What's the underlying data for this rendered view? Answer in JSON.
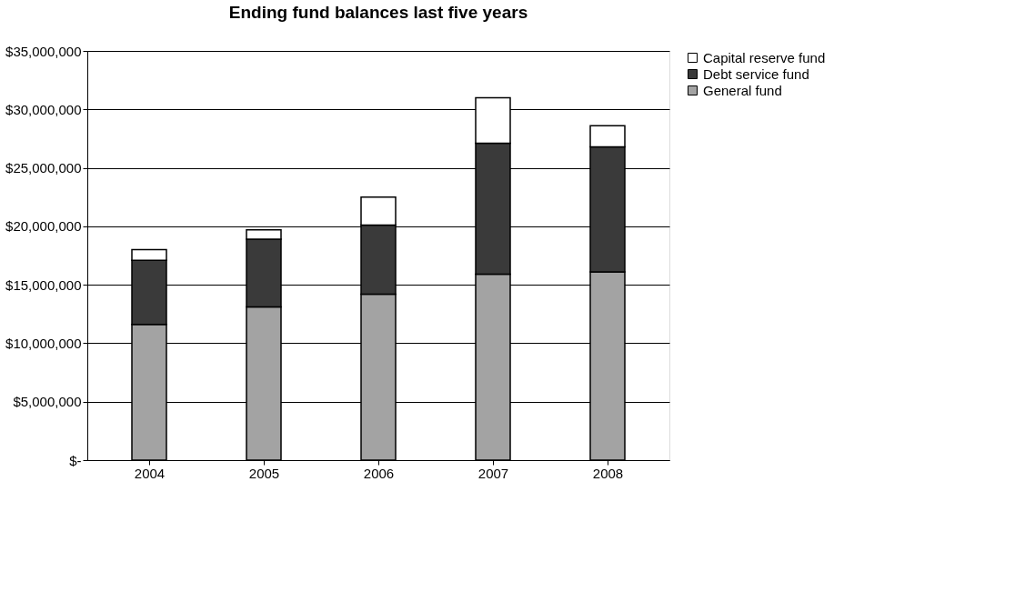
{
  "chart_data": {
    "type": "bar",
    "title": "Ending fund balances last five years",
    "categories": [
      "2004",
      "2005",
      "2006",
      "2007",
      "2008"
    ],
    "stacked": true,
    "series": [
      {
        "name": "General fund",
        "color": "#a3a3a3",
        "values": [
          11600000,
          13100000,
          14200000,
          15900000,
          16100000
        ]
      },
      {
        "name": "Debt service fund",
        "color": "#3a3a3a",
        "values": [
          5500000,
          5800000,
          5900000,
          11200000,
          10700000
        ]
      },
      {
        "name": "Capital reserve fund",
        "color": "#ffffff",
        "values": [
          900000,
          800000,
          2400000,
          3900000,
          1800000
        ]
      }
    ],
    "ylim": [
      0,
      35000000
    ],
    "yticks": [
      {
        "value": 0,
        "label": "$-"
      },
      {
        "value": 5000000,
        "label": "$5,000,000"
      },
      {
        "value": 10000000,
        "label": "$10,000,000"
      },
      {
        "value": 15000000,
        "label": "$15,000,000"
      },
      {
        "value": 20000000,
        "label": "$20,000,000"
      },
      {
        "value": 25000000,
        "label": "$25,000,000"
      },
      {
        "value": 30000000,
        "label": "$30,000,000"
      },
      {
        "value": 35000000,
        "label": "$35,000,000"
      }
    ],
    "grid": "y",
    "legend": "right"
  }
}
